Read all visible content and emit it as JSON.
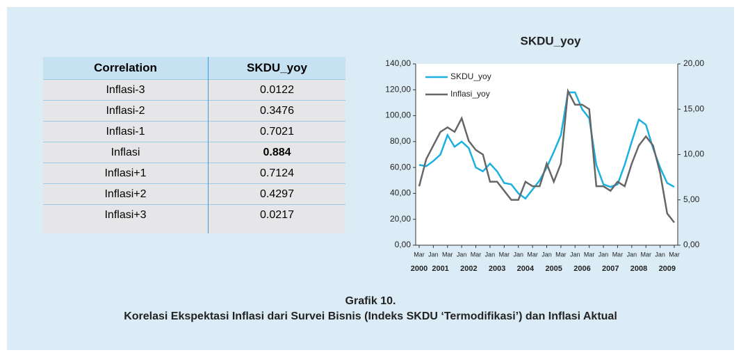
{
  "table": {
    "header": [
      "Correlation",
      "SKDU_yoy"
    ],
    "rows": [
      [
        "Inflasi-3",
        "0.0122"
      ],
      [
        "Inflasi-2",
        "0.3476"
      ],
      [
        "Inflasi-1",
        "0.7021"
      ],
      [
        "Inflasi",
        "0.884"
      ],
      [
        "Inflasi+1",
        "0.7124"
      ],
      [
        "Inflasi+2",
        "0.4297"
      ],
      [
        "Inflasi+3",
        "0.0217"
      ]
    ],
    "bold_rows": [
      3
    ]
  },
  "chart_data": {
    "type": "line",
    "title": "SKDU_yoy",
    "categories": [
      "Mar",
      null,
      "Jan",
      null,
      "Mar",
      null,
      "Jan",
      null,
      "Mar",
      null,
      "Jan",
      null,
      "Mar",
      null,
      "Jan",
      null,
      "Mar",
      null,
      "Jan",
      null,
      "Mar",
      null,
      "Jan",
      null,
      "Mar",
      null,
      "Jan",
      null,
      "Mar",
      null,
      "Jan",
      null,
      "Mar",
      null,
      "Jan",
      null,
      "Mar"
    ],
    "years": [
      "2000",
      "2001",
      "2002",
      "2003",
      "2004",
      "2005",
      "2006",
      "2007",
      "2008",
      "2009"
    ],
    "series": [
      {
        "name": "SKDU_yoy",
        "color": "#1ab0e0",
        "values": [
          62,
          61,
          65,
          70,
          85,
          76,
          80,
          75,
          60,
          57,
          63,
          57,
          48,
          47,
          40,
          36,
          43,
          50,
          60,
          72,
          85,
          118,
          118,
          105,
          98,
          62,
          47,
          45,
          47,
          62,
          80,
          97,
          93,
          75,
          60,
          48,
          45
        ]
      },
      {
        "name": "Inflasi_yoy",
        "color": "#666666",
        "axis": "y2",
        "values": [
          6.5,
          9.5,
          11,
          12.5,
          13,
          12.5,
          14,
          11.5,
          10.5,
          10,
          7,
          7,
          6,
          5,
          5,
          7,
          6.5,
          6.5,
          9,
          7,
          9,
          17,
          15.5,
          15.5,
          15,
          6.5,
          6.5,
          6,
          7,
          6.5,
          9,
          11,
          12,
          11,
          8,
          3.5,
          2.5
        ]
      }
    ],
    "ylim": [
      0,
      140
    ],
    "yticks": [
      {
        "value": 0,
        "label": "0,00"
      },
      {
        "value": 20,
        "label": "20,00"
      },
      {
        "value": 40,
        "label": "40,00"
      },
      {
        "value": 60,
        "label": "60,00"
      },
      {
        "value": 80,
        "label": "80,00"
      },
      {
        "value": 100,
        "label": "100,00"
      },
      {
        "value": 120,
        "label": "120,00"
      },
      {
        "value": 140,
        "label": "140,00"
      }
    ],
    "y2lim": [
      0,
      20
    ],
    "y2ticks": [
      {
        "value": 0,
        "label": "0,00"
      },
      {
        "value": 5,
        "label": "5,00"
      },
      {
        "value": 10,
        "label": "10,00"
      },
      {
        "value": 15,
        "label": "15,00"
      },
      {
        "value": 20,
        "label": "20,00"
      }
    ],
    "legend": "upper-left"
  },
  "caption": {
    "number": "Grafik 10.",
    "title": "Korelasi Ekspektasi Inflasi dari Survei Bisnis (Indeks SKDU ‘Termodifikasi’) dan Inflasi Aktual"
  }
}
